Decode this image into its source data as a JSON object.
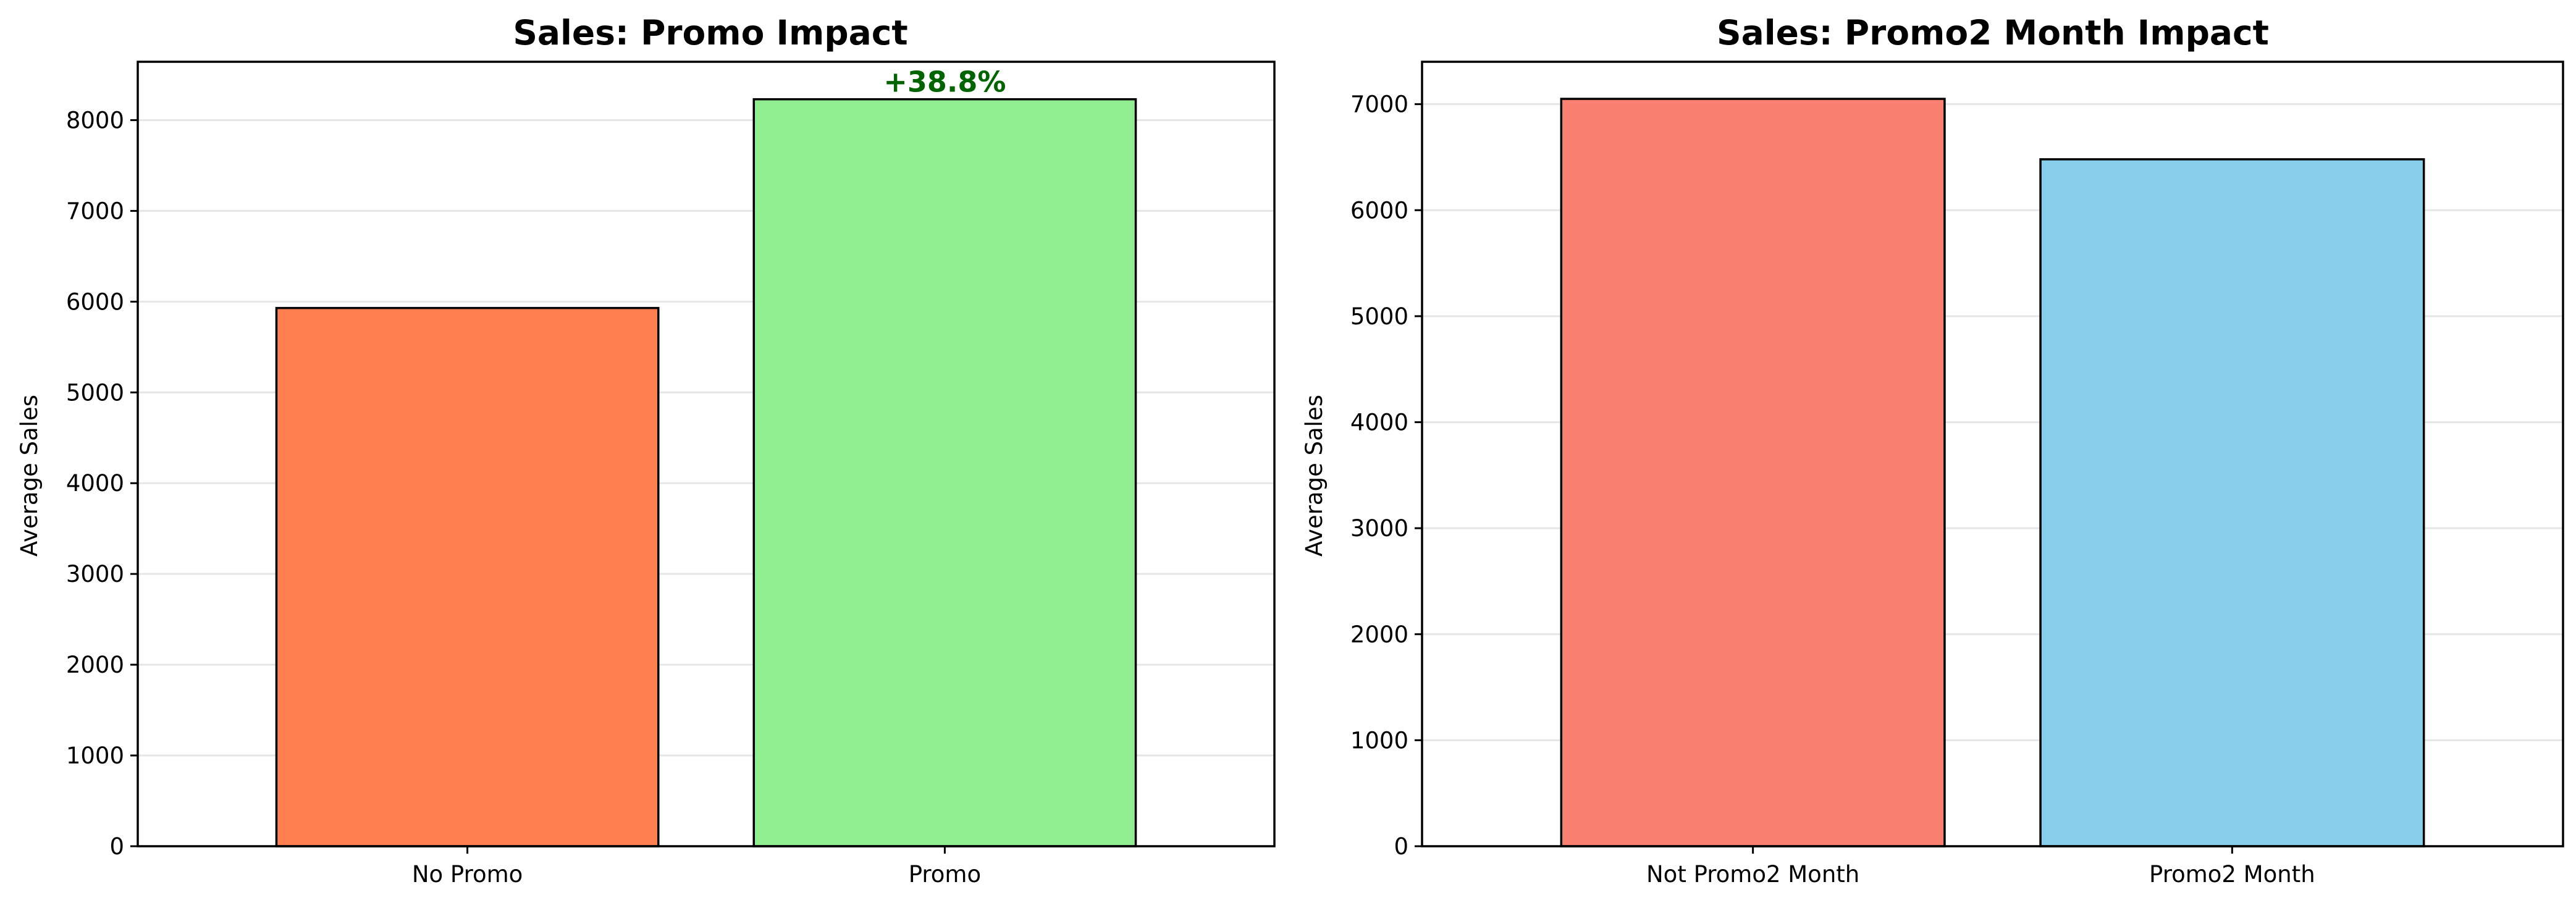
{
  "chart_data": [
    {
      "type": "bar",
      "title": "Sales: Promo Impact",
      "xlabel": "",
      "ylabel": "Average Sales",
      "categories": [
        "No Promo",
        "Promo"
      ],
      "values": [
        5930,
        8230
      ],
      "colors": [
        "#ff7f50",
        "#90ee90"
      ],
      "ylim": [
        0,
        8643
      ],
      "yticks": [
        0,
        1000,
        2000,
        3000,
        4000,
        5000,
        6000,
        7000,
        8000
      ],
      "grid": "y",
      "annotation": {
        "text": "+38.8%",
        "category": "Promo",
        "color": "#006400"
      }
    },
    {
      "type": "bar",
      "title": "Sales: Promo2 Month Impact",
      "xlabel": "",
      "ylabel": "Average Sales",
      "categories": [
        "Not Promo2 Month",
        "Promo2 Month"
      ],
      "values": [
        7050,
        6480
      ],
      "colors": [
        "#fa8072",
        "#87ceeb"
      ],
      "ylim": [
        0,
        7400
      ],
      "yticks": [
        0,
        1000,
        2000,
        3000,
        4000,
        5000,
        6000,
        7000
      ],
      "grid": "y"
    }
  ]
}
